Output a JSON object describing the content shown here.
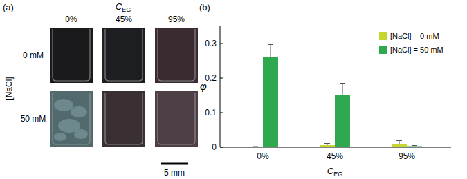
{
  "panel_a": {
    "label": "(a)",
    "column_title": {
      "text": "C",
      "subscript": "EG"
    },
    "columns": [
      "0%",
      "45%",
      "95%"
    ],
    "row_title": "[NaCl]",
    "rows": [
      "0 mM",
      "50 mM"
    ],
    "scale_bar": "5 mm"
  },
  "chart_data": {
    "type": "bar",
    "annotations": [
      "(b)"
    ],
    "xlabel": {
      "text": "C",
      "subscript": "EG"
    },
    "ylabel": "φ",
    "categories": [
      "0%",
      "45%",
      "95%"
    ],
    "series": [
      {
        "name": "[NaCl] = 0 mM",
        "color": "#c5d62e",
        "values": [
          0.001,
          0.006,
          0.009
        ],
        "errors": [
          0.001,
          0.005,
          0.01
        ]
      },
      {
        "name": "[NaCl] = 50 mM",
        "color": "#2fa84f",
        "values": [
          0.262,
          0.152,
          0.003
        ],
        "errors": [
          0.035,
          0.033,
          0.002
        ]
      }
    ],
    "ylim": [
      0,
      0.35
    ],
    "yticks": [
      0,
      0.1,
      0.2,
      0.3
    ],
    "legend": "upper right"
  }
}
